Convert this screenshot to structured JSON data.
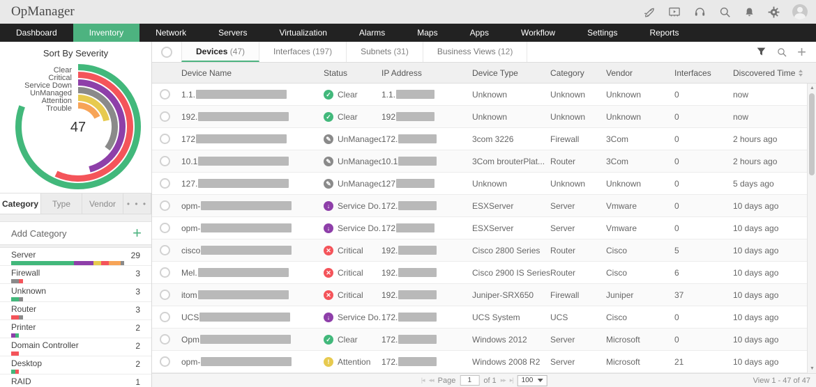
{
  "colors": {
    "accent_green": "#4db380",
    "clear": "#42b87b",
    "critical": "#f4545a",
    "servicedown": "#8e3fa9",
    "unmanaged": "#8a8a8a",
    "attention": "#e7ca4f",
    "trouble": "#f7a457"
  },
  "header": {
    "app_title": "OpManager",
    "icons": [
      "rocket-icon",
      "presentation-icon",
      "headset-icon",
      "search-icon",
      "bell-icon",
      "gear-icon",
      "avatar"
    ]
  },
  "nav": {
    "items": [
      {
        "label": "Dashboard",
        "active": false
      },
      {
        "label": "Inventory",
        "active": true
      },
      {
        "label": "Network",
        "active": false
      },
      {
        "label": "Servers",
        "active": false
      },
      {
        "label": "Virtualization",
        "active": false
      },
      {
        "label": "Alarms",
        "active": false
      },
      {
        "label": "Maps",
        "active": false
      },
      {
        "label": "Apps",
        "active": false
      },
      {
        "label": "Workflow",
        "active": false
      },
      {
        "label": "Settings",
        "active": false
      },
      {
        "label": "Reports",
        "active": false
      }
    ]
  },
  "sidebar": {
    "severity_title": "Sort By Severity",
    "chart_data": {
      "type": "radial-bar",
      "center_total": "47",
      "legend_position": "upper-left",
      "segments": [
        {
          "label": "Clear",
          "color_key": "clear",
          "sweep_deg": 290
        },
        {
          "label": "Critical",
          "color_key": "critical",
          "sweep_deg": 205
        },
        {
          "label": "Service Down",
          "color_key": "servicedown",
          "sweep_deg": 165
        },
        {
          "label": "UnManaged",
          "color_key": "unmanaged",
          "sweep_deg": 127
        },
        {
          "label": "Attention",
          "color_key": "attention",
          "sweep_deg": 78
        },
        {
          "label": "Trouble",
          "color_key": "trouble",
          "sweep_deg": 64
        }
      ]
    },
    "tabs": [
      {
        "label": "Category",
        "active": true
      },
      {
        "label": "Type",
        "active": false
      },
      {
        "label": "Vendor",
        "active": false
      },
      {
        "label": "...",
        "active": false,
        "more": true
      }
    ],
    "add_category_label": "Add Category",
    "add_icon": "plus-icon",
    "categories": [
      {
        "name": "Server",
        "count": "29",
        "segments": [
          [
            "clear",
            16
          ],
          [
            "servicedown",
            5
          ],
          [
            "attention",
            2
          ],
          [
            "critical",
            2
          ],
          [
            "trouble",
            3
          ],
          [
            "unmanaged",
            1
          ]
        ]
      },
      {
        "name": "Firewall",
        "count": "3",
        "segments": [
          [
            "unmanaged",
            2
          ],
          [
            "critical",
            1
          ]
        ]
      },
      {
        "name": "Unknown",
        "count": "3",
        "segments": [
          [
            "clear",
            2
          ],
          [
            "unmanaged",
            1
          ]
        ]
      },
      {
        "name": "Router",
        "count": "3",
        "segments": [
          [
            "critical",
            2
          ],
          [
            "unmanaged",
            1
          ]
        ]
      },
      {
        "name": "Printer",
        "count": "2",
        "segments": [
          [
            "servicedown",
            1
          ],
          [
            "clear",
            1
          ]
        ]
      },
      {
        "name": "Domain Controller",
        "count": "2",
        "segments": [
          [
            "critical",
            2
          ]
        ]
      },
      {
        "name": "Desktop",
        "count": "2",
        "segments": [
          [
            "clear",
            1
          ],
          [
            "critical",
            1
          ]
        ]
      },
      {
        "name": "RAID",
        "count": "1",
        "segments": [
          [
            "servicedown",
            1
          ]
        ]
      }
    ]
  },
  "main": {
    "tabs": [
      {
        "label": "Devices",
        "count": "(47)",
        "active": true
      },
      {
        "label": "Interfaces",
        "count": "(197)",
        "active": false
      },
      {
        "label": "Subnets",
        "count": "(31)",
        "active": false
      },
      {
        "label": "Business Views",
        "count": "(12)",
        "active": false
      }
    ],
    "toolbar_icons": [
      "filter-icon",
      "search-icon",
      "add-icon"
    ],
    "columns": [
      "Device Name",
      "Status",
      "IP Address",
      "Device Type",
      "Category",
      "Vendor",
      "Interfaces",
      "Discovered Time"
    ],
    "rows": [
      {
        "name_prefix": "1.1.",
        "status": "Clear",
        "status_key": "clear",
        "status_glyph": "✓",
        "ip_prefix": "1.1.",
        "device_type": "Unknown",
        "category": "Unknown",
        "vendor": "Unknown",
        "interfaces": "0",
        "discovered": "now"
      },
      {
        "name_prefix": "192.",
        "status": "Clear",
        "status_key": "clear",
        "status_glyph": "✓",
        "ip_prefix": "192",
        "device_type": "Unknown",
        "category": "Unknown",
        "vendor": "Unknown",
        "interfaces": "0",
        "discovered": "now"
      },
      {
        "name_prefix": "172",
        "status": "UnManaged",
        "status_key": "unmanaged",
        "status_glyph": "✎",
        "ip_prefix": "172.",
        "device_type": "3com 3226",
        "category": "Firewall",
        "vendor": "3Com",
        "interfaces": "0",
        "discovered": "2 hours ago"
      },
      {
        "name_prefix": "10.1",
        "status": "UnManaged",
        "status_key": "unmanaged",
        "status_glyph": "✎",
        "ip_prefix": "10.1",
        "device_type": "3Com brouterPlat...",
        "category": "Router",
        "vendor": "3Com",
        "interfaces": "0",
        "discovered": "2 hours ago"
      },
      {
        "name_prefix": "127.",
        "status": "UnManaged",
        "status_key": "unmanaged",
        "status_glyph": "✎",
        "ip_prefix": "127",
        "device_type": "Unknown",
        "category": "Unknown",
        "vendor": "Unknown",
        "interfaces": "0",
        "discovered": "5 days ago"
      },
      {
        "name_prefix": "opm-",
        "status": "Service Do...",
        "status_key": "servicedown",
        "status_glyph": "↓",
        "ip_prefix": "172.",
        "device_type": "ESXServer",
        "category": "Server",
        "vendor": "Vmware",
        "interfaces": "0",
        "discovered": "10 days ago"
      },
      {
        "name_prefix": "opm-",
        "status": "Service Do...",
        "status_key": "servicedown",
        "status_glyph": "↓",
        "ip_prefix": "172",
        "device_type": "ESXServer",
        "category": "Server",
        "vendor": "Vmware",
        "interfaces": "0",
        "discovered": "10 days ago"
      },
      {
        "name_prefix": "cisco",
        "status": "Critical",
        "status_key": "critical",
        "status_glyph": "✕",
        "ip_prefix": "192.",
        "device_type": "Cisco 2800 Series",
        "category": "Router",
        "vendor": "Cisco",
        "interfaces": "5",
        "discovered": "10 days ago"
      },
      {
        "name_prefix": "Mel.",
        "status": "Critical",
        "status_key": "critical",
        "status_glyph": "✕",
        "ip_prefix": "192.",
        "device_type": "Cisco 2900 IS Series",
        "category": "Router",
        "vendor": "Cisco",
        "interfaces": "6",
        "discovered": "10 days ago"
      },
      {
        "name_prefix": "itom",
        "status": "Critical",
        "status_key": "critical",
        "status_glyph": "✕",
        "ip_prefix": "192.",
        "device_type": "Juniper-SRX650",
        "category": "Firewall",
        "vendor": "Juniper",
        "interfaces": "37",
        "discovered": "10 days ago"
      },
      {
        "name_prefix": "UCS",
        "status": "Service Do...",
        "status_key": "servicedown",
        "status_glyph": "↓",
        "ip_prefix": "172.",
        "device_type": "UCS System",
        "category": "UCS",
        "vendor": "Cisco",
        "interfaces": "0",
        "discovered": "10 days ago"
      },
      {
        "name_prefix": "Opm",
        "status": "Clear",
        "status_key": "clear",
        "status_glyph": "✓",
        "ip_prefix": "172.",
        "device_type": "Windows 2012",
        "category": "Server",
        "vendor": "Microsoft",
        "interfaces": "0",
        "discovered": "10 days ago"
      },
      {
        "name_prefix": "opm-",
        "status": "Attention",
        "status_key": "attention",
        "status_glyph": "!",
        "ip_prefix": "172.",
        "device_type": "Windows 2008 R2",
        "category": "Server",
        "vendor": "Microsoft",
        "interfaces": "21",
        "discovered": "10 days ago"
      }
    ],
    "footer": {
      "page_label": "Page",
      "page_value": "1",
      "of_label": "of 1",
      "first_arrow": "|◂",
      "prev_arrow": "◂◂",
      "next_arrow": "▸▸",
      "last_arrow": "▸|",
      "page_size": "100",
      "view_label": "View 1 - 47 of 47"
    }
  }
}
